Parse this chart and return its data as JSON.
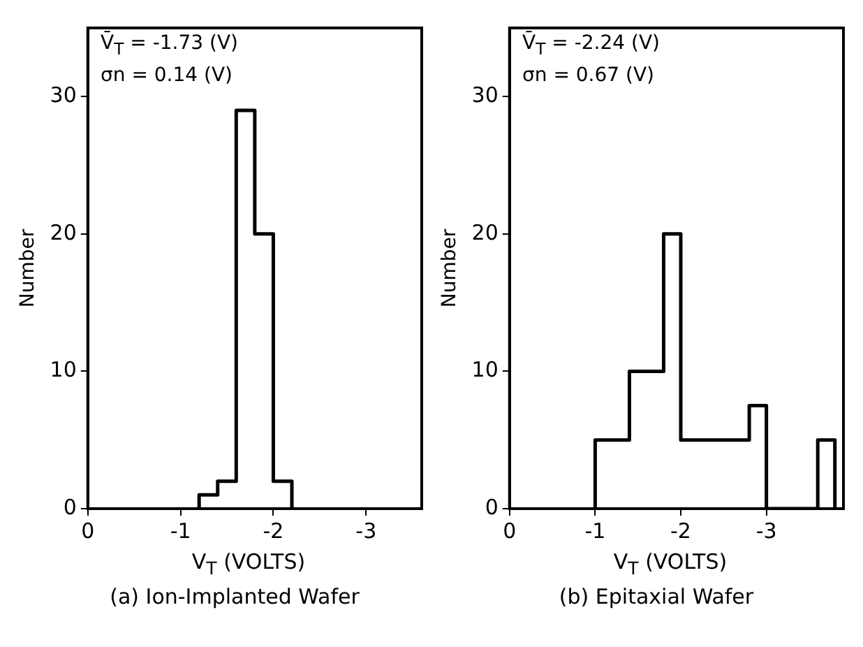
{
  "chart_data": [
    {
      "type": "histogram",
      "title": "(a) Ion-Implanted Wafer",
      "xlabel": "V$_{T}$ (VOLTS)",
      "ylabel": "Number",
      "annotations": [
        "V̄$_{T}$ = -1.73 (V)",
        "σn = 0.14 (V)"
      ],
      "bins": [
        -1.2,
        -1.4,
        -1.6,
        -1.8,
        -2.0,
        -2.2
      ],
      "values": [
        1,
        2,
        29,
        20,
        2
      ],
      "color": "#000000",
      "xlim": [
        0,
        -3.6
      ],
      "xticks": [
        0,
        -1,
        -2,
        -3
      ],
      "ylim": [
        0,
        35
      ],
      "yticks": [
        0,
        10,
        20,
        30
      ],
      "grid": false,
      "legend": false
    },
    {
      "type": "histogram",
      "title": "(b) Epitaxial Wafer",
      "xlabel": "V$_{T}$ (VOLTS)",
      "ylabel": "Number",
      "annotations": [
        "V̄$_{T}$ = -2.24 (V)",
        "σn = 0.67 (V)"
      ],
      "bins": [
        -1.0,
        -1.4,
        -1.8,
        -2.0,
        -2.8,
        -3.0,
        -3.6,
        -3.8
      ],
      "values": [
        5,
        10,
        20,
        5,
        7.5,
        0,
        5
      ],
      "color": "#000000",
      "xlim": [
        0,
        -3.9
      ],
      "xticks": [
        0,
        -1,
        -2,
        -3
      ],
      "ylim": [
        0,
        35
      ],
      "yticks": [
        0,
        10,
        20,
        30
      ],
      "grid": false,
      "legend": false
    }
  ]
}
